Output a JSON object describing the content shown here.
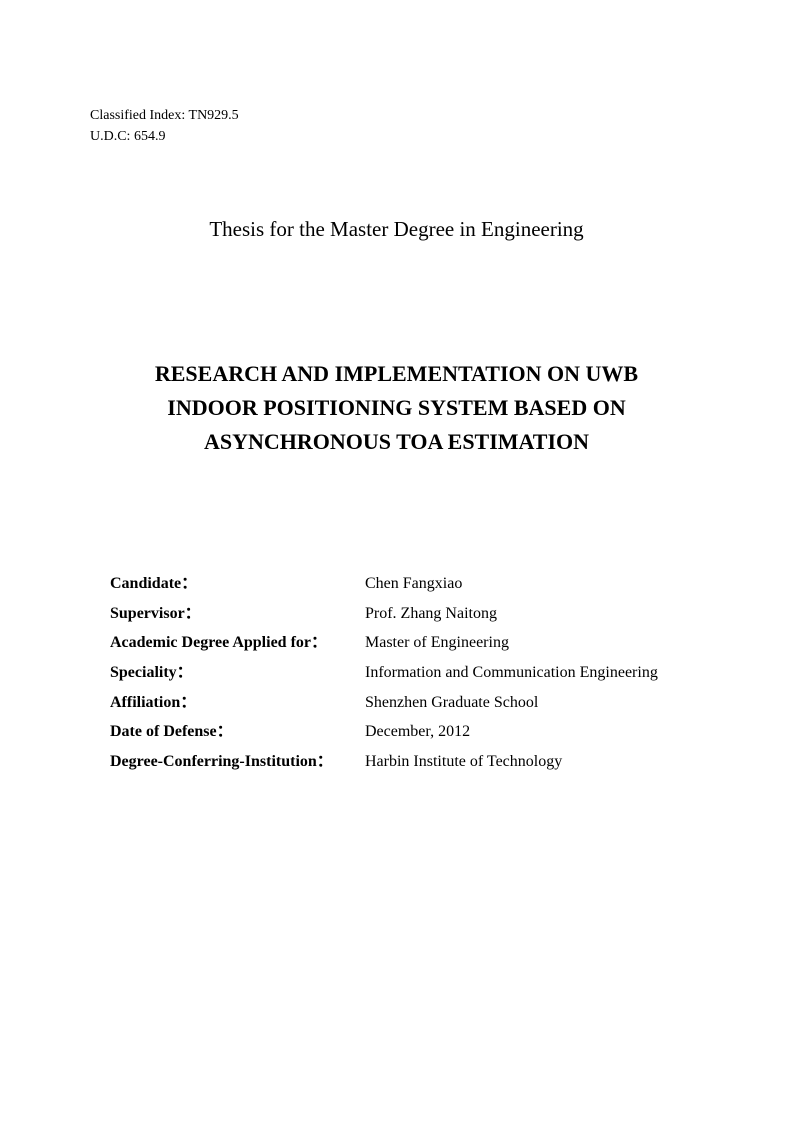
{
  "header": {
    "classified_index_label": "Classified Index:",
    "classified_index_value": "TN929.5",
    "udc_label": "U.D.C:",
    "udc_value": "654.9"
  },
  "thesis_type": "Thesis for the Master Degree in Engineering",
  "title": {
    "line1": "RESEARCH AND IMPLEMENTATION ON UWB",
    "line2": "INDOOR POSITIONING SYSTEM BASED ON",
    "line3": "ASYNCHRONOUS TOA ESTIMATION"
  },
  "info": {
    "candidate": {
      "label": "Candidate：",
      "value": "Chen Fangxiao"
    },
    "supervisor": {
      "label": "Supervisor：",
      "value": "Prof. Zhang Naitong"
    },
    "degree": {
      "label": "Academic Degree Applied for：",
      "value": "Master of Engineering"
    },
    "speciality": {
      "label": "Speciality：",
      "value": "Information and Communication Engineering"
    },
    "affiliation": {
      "label": "Affiliation：",
      "value": "Shenzhen Graduate School"
    },
    "defense_date": {
      "label": "Date of Defense：",
      "value": "December, 2012"
    },
    "institution": {
      "label": "Degree-Conferring-Institution：",
      "value": "Harbin Institute of Technology"
    }
  }
}
